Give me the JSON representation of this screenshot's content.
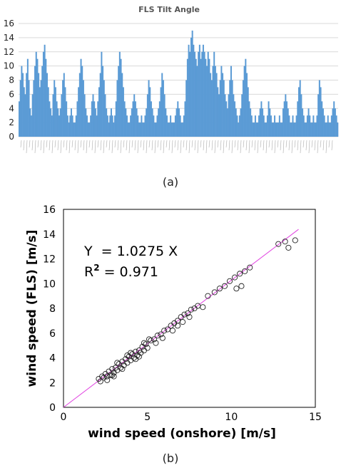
{
  "captions": {
    "a": "(a)",
    "b": "(b)"
  },
  "chart_data": [
    {
      "type": "bar",
      "title": "FLS Tilt Angle",
      "xlabel": "",
      "ylabel": "",
      "ylim": [
        0,
        16
      ],
      "yticks": [
        "0",
        "2",
        "4",
        "6",
        "8",
        "10",
        "12",
        "14",
        "16"
      ],
      "grid": true,
      "color": "#5b9bd5",
      "values": [
        5,
        8,
        10,
        9,
        7,
        6,
        9,
        11,
        8,
        4,
        3,
        6,
        8,
        10,
        12,
        11,
        9,
        7,
        8,
        10,
        12,
        13,
        11,
        9,
        7,
        5,
        4,
        3,
        6,
        8,
        7,
        5,
        4,
        3,
        4,
        6,
        8,
        9,
        7,
        5,
        3,
        2,
        3,
        4,
        3,
        2,
        2,
        3,
        5,
        7,
        9,
        11,
        10,
        8,
        6,
        4,
        3,
        2,
        2,
        3,
        5,
        6,
        5,
        4,
        3,
        5,
        7,
        9,
        12,
        10,
        8,
        6,
        4,
        3,
        2,
        3,
        4,
        3,
        2,
        3,
        5,
        8,
        10,
        12,
        11,
        9,
        7,
        5,
        4,
        3,
        2,
        2,
        3,
        4,
        5,
        6,
        5,
        4,
        3,
        2,
        2,
        3,
        2,
        2,
        3,
        4,
        6,
        8,
        7,
        5,
        4,
        3,
        2,
        2,
        3,
        4,
        5,
        7,
        9,
        8,
        6,
        4,
        3,
        2,
        2,
        3,
        2,
        2,
        2,
        3,
        4,
        5,
        4,
        3,
        2,
        2,
        3,
        5,
        8,
        11,
        13,
        12,
        14,
        15,
        13,
        12,
        11,
        10,
        12,
        13,
        11,
        12,
        13,
        12,
        11,
        10,
        12,
        11,
        9,
        8,
        10,
        12,
        10,
        9,
        7,
        6,
        8,
        10,
        9,
        8,
        6,
        5,
        4,
        6,
        8,
        10,
        8,
        6,
        5,
        4,
        3,
        2,
        3,
        4,
        6,
        8,
        10,
        11,
        9,
        7,
        5,
        4,
        3,
        2,
        2,
        3,
        2,
        2,
        3,
        4,
        5,
        4,
        3,
        2,
        2,
        3,
        5,
        4,
        3,
        2,
        2,
        3,
        2,
        2,
        2,
        3,
        2,
        2,
        4,
        5,
        6,
        5,
        4,
        3,
        2,
        2,
        3,
        2,
        2,
        3,
        5,
        7,
        8,
        6,
        4,
        3,
        2,
        2,
        3,
        4,
        3,
        2,
        2,
        3,
        2,
        2,
        3,
        6,
        8,
        7,
        5,
        4,
        3,
        2,
        2,
        3,
        2,
        2,
        3,
        4,
        5,
        4,
        3,
        2
      ],
      "x_tick_labels_legible": false
    },
    {
      "type": "scatter",
      "title": "",
      "xlabel": "wind speed (onshore) [m/s]",
      "ylabel": "wind speed (FLS) [m/s]",
      "xlim": [
        0,
        15
      ],
      "ylim": [
        0,
        16
      ],
      "xticks": [
        "0",
        "5",
        "10",
        "15"
      ],
      "yticks": [
        "0",
        "2",
        "4",
        "6",
        "8",
        "10",
        "12",
        "14",
        "16"
      ],
      "fit": {
        "slope": 1.0275,
        "intercept": 0,
        "color": "#e040e0"
      },
      "annotations": [
        "Y  = 1.0275 X",
        "R",
        "2",
        " = 0.971"
      ],
      "points": [
        [
          2.1,
          2.3
        ],
        [
          2.2,
          2.1
        ],
        [
          2.3,
          2.5
        ],
        [
          2.4,
          2.4
        ],
        [
          2.5,
          2.7
        ],
        [
          2.6,
          2.5
        ],
        [
          2.7,
          2.9
        ],
        [
          2.8,
          2.6
        ],
        [
          2.9,
          3.1
        ],
        [
          3.0,
          2.8
        ],
        [
          3.1,
          3.2
        ],
        [
          3.2,
          3.0
        ],
        [
          3.3,
          3.5
        ],
        [
          3.4,
          3.2
        ],
        [
          3.5,
          3.7
        ],
        [
          3.6,
          3.4
        ],
        [
          3.7,
          3.9
        ],
        [
          3.8,
          3.6
        ],
        [
          3.9,
          4.1
        ],
        [
          4.0,
          3.8
        ],
        [
          4.1,
          4.3
        ],
        [
          4.2,
          4.0
        ],
        [
          4.3,
          4.5
        ],
        [
          4.4,
          4.2
        ],
        [
          4.5,
          4.6
        ],
        [
          4.6,
          4.4
        ],
        [
          4.7,
          4.9
        ],
        [
          4.8,
          4.6
        ],
        [
          4.9,
          5.1
        ],
        [
          5.0,
          4.8
        ],
        [
          5.2,
          5.4
        ],
        [
          5.4,
          5.5
        ],
        [
          5.6,
          5.8
        ],
        [
          5.8,
          5.9
        ],
        [
          6.0,
          6.2
        ],
        [
          6.2,
          6.3
        ],
        [
          6.4,
          6.6
        ],
        [
          6.6,
          6.8
        ],
        [
          6.8,
          7.0
        ],
        [
          7.0,
          7.3
        ],
        [
          7.2,
          7.5
        ],
        [
          7.4,
          7.6
        ],
        [
          7.6,
          7.9
        ],
        [
          7.8,
          8.0
        ],
        [
          8.0,
          8.2
        ],
        [
          8.6,
          9.0
        ],
        [
          9.0,
          9.3
        ],
        [
          9.3,
          9.6
        ],
        [
          9.6,
          9.8
        ],
        [
          9.9,
          10.2
        ],
        [
          10.2,
          10.5
        ],
        [
          10.5,
          10.8
        ],
        [
          10.8,
          11.0
        ],
        [
          11.1,
          11.3
        ],
        [
          12.8,
          13.2
        ],
        [
          13.2,
          13.4
        ],
        [
          13.4,
          12.9
        ],
        [
          13.8,
          13.5
        ],
        [
          3.0,
          2.5
        ],
        [
          3.5,
          3.1
        ],
        [
          4.0,
          4.4
        ],
        [
          4.5,
          4.1
        ],
        [
          5.5,
          5.2
        ],
        [
          6.5,
          6.2
        ],
        [
          7.5,
          7.3
        ],
        [
          3.2,
          3.6
        ],
        [
          2.6,
          2.2
        ],
        [
          4.8,
          5.2
        ],
        [
          5.9,
          5.6
        ],
        [
          6.8,
          6.6
        ],
        [
          10.3,
          9.6
        ],
        [
          10.6,
          9.8
        ],
        [
          8.3,
          8.1
        ],
        [
          3.8,
          4.2
        ],
        [
          4.3,
          3.9
        ],
        [
          2.9,
          2.6
        ],
        [
          5.1,
          5.5
        ],
        [
          7.1,
          6.9
        ]
      ]
    }
  ]
}
